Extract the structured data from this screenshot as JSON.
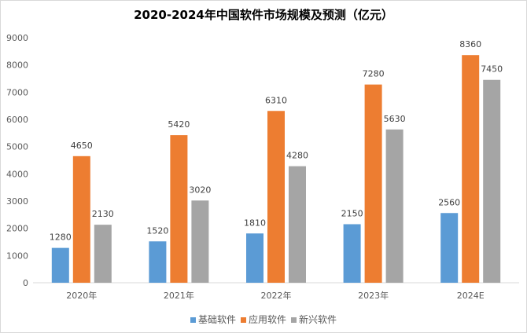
{
  "chart_data": {
    "type": "bar",
    "title": "2020-2024年中国软件市场规模及预测（亿元）",
    "categories": [
      "2020年",
      "2021年",
      "2022年",
      "2023年",
      "2024E"
    ],
    "series": [
      {
        "name": "基础软件",
        "color": "#5b9bd5",
        "values": [
          1280,
          1520,
          1810,
          2150,
          2560
        ]
      },
      {
        "name": "应用软件",
        "color": "#ed7d31",
        "values": [
          4650,
          5420,
          6310,
          7280,
          8360
        ]
      },
      {
        "name": "新兴软件",
        "color": "#a5a5a5",
        "values": [
          2130,
          3020,
          4280,
          5630,
          7450
        ]
      }
    ],
    "ylim": [
      0,
      9000
    ],
    "yticks": [
      0,
      1000,
      2000,
      3000,
      4000,
      5000,
      6000,
      7000,
      8000,
      9000
    ],
    "xlabel": "",
    "ylabel": "",
    "grid": false,
    "legend": "bottom"
  }
}
